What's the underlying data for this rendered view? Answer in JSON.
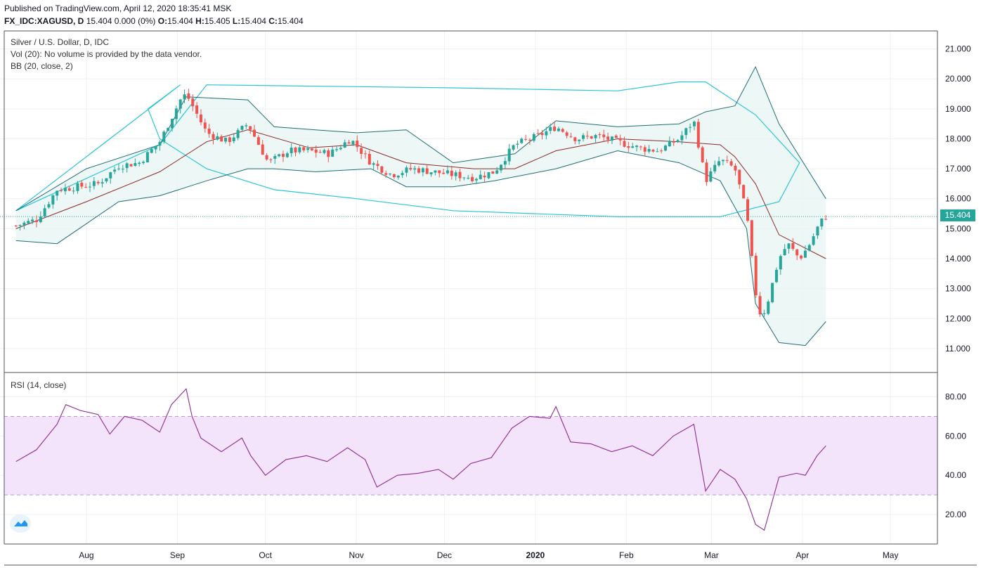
{
  "header": {
    "published": "Published on TradingView.com, April 12, 2020 18:35:41 MSK",
    "symbol": "FX_IDC:XAGUSD, D",
    "quote_change": "15.404 0.000 (0%)",
    "o_label": "O:",
    "o_value": "15.404",
    "h_label": "H:",
    "h_value": "15.405",
    "l_label": "L:",
    "l_value": "15.404",
    "c_label": "C:",
    "c_value": "15.404"
  },
  "legend": {
    "title": "Silver / U.S. Dollar, D, IDC",
    "vol": "Vol (20): No volume is provided by the data vendor.",
    "bb": "BB (20, close, 2)",
    "rsi": "RSI (14, close)"
  },
  "price_tag": "15.404",
  "colors": {
    "up": "#26a69a",
    "down": "#ef5350",
    "bb_band": "#1e6e74",
    "bb_basis": "#8b2a2a",
    "envelope": "#29c5d6",
    "rsi_line": "#8e2a94",
    "rsi_band": "#f3e3fb",
    "grid": "#eef0f3"
  },
  "chart_data": [
    {
      "type": "candlestick",
      "ylim": [
        10.2,
        21.6
      ],
      "y_ticks": [
        "21.000",
        "20.000",
        "19.000",
        "18.000",
        "17.000",
        "16.000",
        "15.000",
        "14.000",
        "13.000",
        "12.000",
        "11.000"
      ],
      "x_ticks": [
        "Aug",
        "Sep",
        "Oct",
        "Nov",
        "Dec",
        "2020",
        "Feb",
        "Mar",
        "Apr",
        "May"
      ],
      "last_price": 15.404,
      "close_path": [
        [
          "2019-07-08",
          15.1
        ],
        [
          "2019-07-15",
          15.3
        ],
        [
          "2019-07-22",
          16.3
        ],
        [
          "2019-07-29",
          16.4
        ],
        [
          "2019-08-05",
          16.5
        ],
        [
          "2019-08-12",
          17.1
        ],
        [
          "2019-08-19",
          17.2
        ],
        [
          "2019-08-26",
          17.9
        ],
        [
          "2019-09-02",
          19.3
        ],
        [
          "2019-09-04",
          19.5
        ],
        [
          "2019-09-11",
          18.2
        ],
        [
          "2019-09-18",
          17.9
        ],
        [
          "2019-09-25",
          18.5
        ],
        [
          "2019-10-02",
          17.2
        ],
        [
          "2019-10-09",
          17.6
        ],
        [
          "2019-10-16",
          17.6
        ],
        [
          "2019-10-23",
          17.5
        ],
        [
          "2019-10-30",
          18.0
        ],
        [
          "2019-11-06",
          17.2
        ],
        [
          "2019-11-13",
          16.8
        ],
        [
          "2019-11-20",
          17.0
        ],
        [
          "2019-11-27",
          16.9
        ],
        [
          "2019-12-04",
          16.8
        ],
        [
          "2019-12-11",
          16.7
        ],
        [
          "2019-12-18",
          16.9
        ],
        [
          "2019-12-25",
          17.8
        ],
        [
          "2020-01-02",
          18.1
        ],
        [
          "2020-01-08",
          18.4
        ],
        [
          "2020-01-15",
          18.0
        ],
        [
          "2020-01-22",
          18.1
        ],
        [
          "2020-01-29",
          17.9
        ],
        [
          "2020-02-05",
          17.7
        ],
        [
          "2020-02-12",
          17.6
        ],
        [
          "2020-02-19",
          18.0
        ],
        [
          "2020-02-24",
          18.6
        ],
        [
          "2020-02-28",
          16.6
        ],
        [
          "2020-03-04",
          17.3
        ],
        [
          "2020-03-09",
          17.0
        ],
        [
          "2020-03-13",
          15.5
        ],
        [
          "2020-03-16",
          12.9
        ],
        [
          "2020-03-18",
          12.0
        ],
        [
          "2020-03-20",
          12.5
        ],
        [
          "2020-03-24",
          14.0
        ],
        [
          "2020-03-27",
          14.5
        ],
        [
          "2020-03-31",
          14.0
        ],
        [
          "2020-04-03",
          14.4
        ],
        [
          "2020-04-07",
          15.2
        ],
        [
          "2020-04-09",
          15.4
        ]
      ],
      "bb_upper": [
        [
          "2019-07-08",
          15.6
        ],
        [
          "2019-08-01",
          17.0
        ],
        [
          "2019-08-26",
          17.8
        ],
        [
          "2019-09-04",
          19.4
        ],
        [
          "2019-09-25",
          19.3
        ],
        [
          "2019-10-04",
          18.4
        ],
        [
          "2019-10-18",
          18.3
        ],
        [
          "2019-11-01",
          18.2
        ],
        [
          "2019-11-18",
          18.3
        ],
        [
          "2019-12-04",
          17.2
        ],
        [
          "2019-12-25",
          17.5
        ],
        [
          "2020-01-08",
          18.6
        ],
        [
          "2020-01-29",
          18.4
        ],
        [
          "2020-02-19",
          18.5
        ],
        [
          "2020-02-28",
          18.9
        ],
        [
          "2020-03-09",
          19.1
        ],
        [
          "2020-03-16",
          20.4
        ],
        [
          "2020-03-24",
          18.5
        ],
        [
          "2020-04-09",
          16.0
        ]
      ],
      "bb_basis": [
        [
          "2019-07-08",
          15.0
        ],
        [
          "2019-08-01",
          15.9
        ],
        [
          "2019-08-26",
          16.9
        ],
        [
          "2019-09-11",
          17.9
        ],
        [
          "2019-09-25",
          18.3
        ],
        [
          "2019-10-16",
          17.7
        ],
        [
          "2019-11-01",
          17.8
        ],
        [
          "2019-11-18",
          17.2
        ],
        [
          "2019-12-11",
          17.0
        ],
        [
          "2019-12-25",
          17.0
        ],
        [
          "2020-01-08",
          17.6
        ],
        [
          "2020-01-29",
          18.0
        ],
        [
          "2020-02-19",
          17.9
        ],
        [
          "2020-03-04",
          17.8
        ],
        [
          "2020-03-09",
          17.4
        ],
        [
          "2020-03-16",
          16.5
        ],
        [
          "2020-03-24",
          14.8
        ],
        [
          "2020-04-09",
          14.0
        ]
      ],
      "bb_lower": [
        [
          "2019-07-08",
          14.6
        ],
        [
          "2019-07-22",
          14.5
        ],
        [
          "2019-08-12",
          15.9
        ],
        [
          "2019-08-26",
          16.1
        ],
        [
          "2019-09-11",
          16.6
        ],
        [
          "2019-09-25",
          17.0
        ],
        [
          "2019-10-04",
          17.0
        ],
        [
          "2019-10-18",
          16.9
        ],
        [
          "2019-11-06",
          17.0
        ],
        [
          "2019-11-18",
          16.4
        ],
        [
          "2019-12-04",
          16.4
        ],
        [
          "2019-12-18",
          16.6
        ],
        [
          "2020-01-08",
          17.0
        ],
        [
          "2020-01-29",
          17.6
        ],
        [
          "2020-02-19",
          17.2
        ],
        [
          "2020-03-04",
          16.6
        ],
        [
          "2020-03-13",
          15.0
        ],
        [
          "2020-03-16",
          12.5
        ],
        [
          "2020-03-24",
          11.2
        ],
        [
          "2020-04-02",
          11.1
        ],
        [
          "2020-04-09",
          11.9
        ]
      ],
      "envelope": [
        [
          "2019-07-08",
          15.6
        ],
        [
          "2019-08-26",
          17.8
        ],
        [
          "2019-09-11",
          19.8
        ],
        [
          "2019-12-04",
          19.7
        ],
        [
          "2020-01-29",
          19.6
        ],
        [
          "2020-02-19",
          19.9
        ],
        [
          "2020-02-28",
          19.9
        ],
        [
          "2020-03-16",
          18.8
        ],
        [
          "2020-03-31",
          17.2
        ],
        [
          "2020-03-24",
          15.9
        ],
        [
          "2020-03-04",
          15.4
        ],
        [
          "2020-01-29",
          15.4
        ],
        [
          "2019-12-04",
          15.6
        ],
        [
          "2019-11-01",
          16.0
        ],
        [
          "2019-10-04",
          16.3
        ],
        [
          "2019-09-11",
          17.0
        ],
        [
          "2019-08-26",
          18.0
        ],
        [
          "2019-08-22",
          19.0
        ],
        [
          "2019-09-02",
          19.8
        ]
      ]
    },
    {
      "type": "line",
      "ylim": [
        5,
        92
      ],
      "y_ticks": [
        "80.00",
        "60.00",
        "40.00",
        "20.00"
      ],
      "band": [
        30,
        70
      ],
      "series": [
        {
          "values": [
            [
              "2019-07-08",
              47
            ],
            [
              "2019-07-15",
              53
            ],
            [
              "2019-07-22",
              66
            ],
            [
              "2019-07-25",
              76
            ],
            [
              "2019-07-30",
              73
            ],
            [
              "2019-08-05",
              71
            ],
            [
              "2019-08-09",
              61
            ],
            [
              "2019-08-14",
              70
            ],
            [
              "2019-08-20",
              68
            ],
            [
              "2019-08-26",
              62
            ],
            [
              "2019-08-30",
              76
            ],
            [
              "2019-09-04",
              84
            ],
            [
              "2019-09-06",
              70
            ],
            [
              "2019-09-09",
              59
            ],
            [
              "2019-09-16",
              52
            ],
            [
              "2019-09-23",
              59
            ],
            [
              "2019-09-26",
              50
            ],
            [
              "2019-10-01",
              40
            ],
            [
              "2019-10-08",
              48
            ],
            [
              "2019-10-15",
              50
            ],
            [
              "2019-10-22",
              47
            ],
            [
              "2019-10-29",
              54
            ],
            [
              "2019-11-04",
              48
            ],
            [
              "2019-11-08",
              34
            ],
            [
              "2019-11-15",
              40
            ],
            [
              "2019-11-22",
              41
            ],
            [
              "2019-11-29",
              43
            ],
            [
              "2019-12-04",
              38
            ],
            [
              "2019-12-10",
              46
            ],
            [
              "2019-12-17",
              49
            ],
            [
              "2019-12-24",
              64
            ],
            [
              "2019-12-30",
              70
            ],
            [
              "2020-01-06",
              69
            ],
            [
              "2020-01-08",
              75
            ],
            [
              "2020-01-13",
              57
            ],
            [
              "2020-01-20",
              56
            ],
            [
              "2020-01-27",
              52
            ],
            [
              "2020-02-03",
              55
            ],
            [
              "2020-02-10",
              50
            ],
            [
              "2020-02-17",
              60
            ],
            [
              "2020-02-24",
              66
            ],
            [
              "2020-02-28",
              32
            ],
            [
              "2020-03-04",
              43
            ],
            [
              "2020-03-09",
              38
            ],
            [
              "2020-03-13",
              28
            ],
            [
              "2020-03-16",
              15
            ],
            [
              "2020-03-19",
              12
            ],
            [
              "2020-03-24",
              39
            ],
            [
              "2020-03-30",
              41
            ],
            [
              "2020-04-02",
              40
            ],
            [
              "2020-04-06",
              50
            ],
            [
              "2020-04-09",
              55
            ]
          ]
        }
      ]
    }
  ]
}
